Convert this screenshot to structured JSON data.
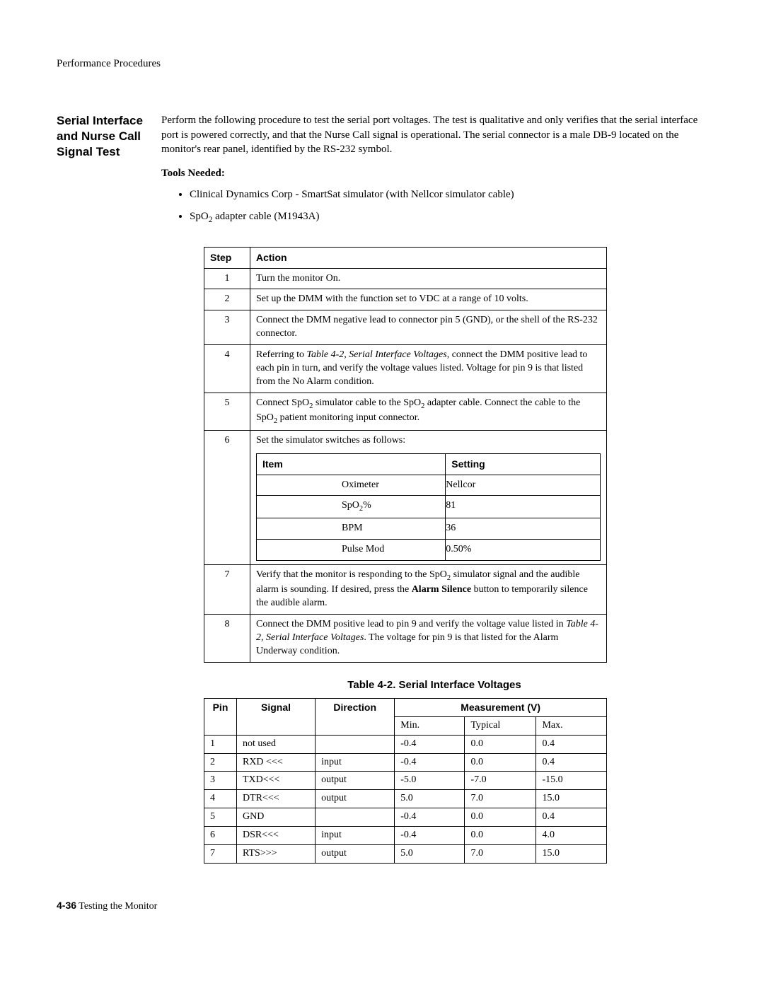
{
  "runningHeader": "Performance Procedures",
  "sideHeading": "Serial Interface and Nurse Call Signal Test",
  "introPara": "Perform the following procedure to test the serial port voltages. The test is qualitative and only verifies that the serial interface port is powered correctly, and that the Nurse Call signal is operational. The serial connector is a male DB-9 located on the monitor's rear panel, identified by the RS-232 symbol.",
  "toolsNeededHeading": "Tools Needed:",
  "tools": {
    "item0": "Clinical Dynamics Corp - SmartSat simulator (with Nellcor simulator cable)",
    "item1_prefix": "SpO",
    "item1_sub": "2",
    "item1_suffix": " adapter cable (M1943A)"
  },
  "stepsHeader": {
    "step": "Step",
    "action": "Action"
  },
  "steps": {
    "s1": {
      "n": "1",
      "text": "Turn the monitor On."
    },
    "s2": {
      "n": "2",
      "text": "Set up the DMM with the function set to VDC at a range of 10 volts."
    },
    "s3": {
      "n": "3",
      "text": "Connect the DMM negative lead to connector pin 5 (GND), or the shell of the RS-232 connector."
    },
    "s4": {
      "n": "4",
      "pre": "Referring to ",
      "italic": "Table 4-2, Serial Interface Voltages",
      "post": ", connect the DMM positive lead to each pin in turn, and verify the voltage values listed. Voltage for pin 9 is that listed from the No Alarm condition."
    },
    "s5": {
      "n": "5",
      "a": "Connect SpO",
      "sub1": "2",
      "b": " simulator cable to the SpO",
      "sub2": "2",
      "c": " adapter cable. Connect the cable to the SpO",
      "sub3": "2",
      "d": " patient monitoring input connector."
    },
    "s6": {
      "n": "6",
      "lead": "Set the simulator switches as follows:",
      "headers": {
        "item": "Item",
        "setting": "Setting"
      },
      "rows": {
        "r0": {
          "item": "Oximeter",
          "setting": "Nellcor"
        },
        "r1": {
          "item_pre": "SpO",
          "item_sub": "2",
          "item_post": "%",
          "setting": "81"
        },
        "r2": {
          "item": "BPM",
          "setting": "36"
        },
        "r3": {
          "item": "Pulse Mod",
          "setting": "0.50%"
        }
      }
    },
    "s7": {
      "n": "7",
      "a": "Verify that the monitor is responding to the SpO",
      "sub": "2",
      "b": " simulator signal and the audible alarm is sounding. If desired, press the ",
      "bold": "Alarm Silence",
      "c": " button to temporarily silence the audible alarm."
    },
    "s8": {
      "n": "8",
      "a": "Connect the DMM positive lead to pin 9 and verify the voltage value listed in ",
      "italic": "Table 4-2, Serial Interface Voltages",
      "b": ". The voltage for pin 9 is that listed for the Alarm Underway condition."
    }
  },
  "voltagesCaption": "Table 4-2.  Serial Interface Voltages",
  "voltagesHeader": {
    "pin": "Pin",
    "signal": "Signal",
    "direction": "Direction",
    "measurement": "Measurement (V)",
    "min": "Min.",
    "typical": "Typical",
    "max": "Max."
  },
  "voltages": {
    "r0": {
      "pin": "1",
      "signal": "not used",
      "dir": "",
      "min": "-0.4",
      "typ": "0.0",
      "max": "0.4"
    },
    "r1": {
      "pin": "2",
      "signal": "RXD <<<",
      "dir": "input",
      "min": "-0.4",
      "typ": "0.0",
      "max": "0.4"
    },
    "r2": {
      "pin": "3",
      "signal": "TXD<<<",
      "dir": "output",
      "min": "-5.0",
      "typ": "-7.0",
      "max": "-15.0"
    },
    "r3": {
      "pin": "4",
      "signal": "DTR<<<",
      "dir": "output",
      "min": "5.0",
      "typ": "7.0",
      "max": "15.0"
    },
    "r4": {
      "pin": "5",
      "signal": "GND",
      "dir": "",
      "min": "-0.4",
      "typ": "0.0",
      "max": "0.4"
    },
    "r5": {
      "pin": "6",
      "signal": "DSR<<<",
      "dir": "input",
      "min": "-0.4",
      "typ": "0.0",
      "max": "4.0"
    },
    "r6": {
      "pin": "7",
      "signal": "RTS>>>",
      "dir": "output",
      "min": "5.0",
      "typ": "7.0",
      "max": "15.0"
    }
  },
  "footer": {
    "pageNo": "4-36",
    "title": " Testing the Monitor"
  }
}
